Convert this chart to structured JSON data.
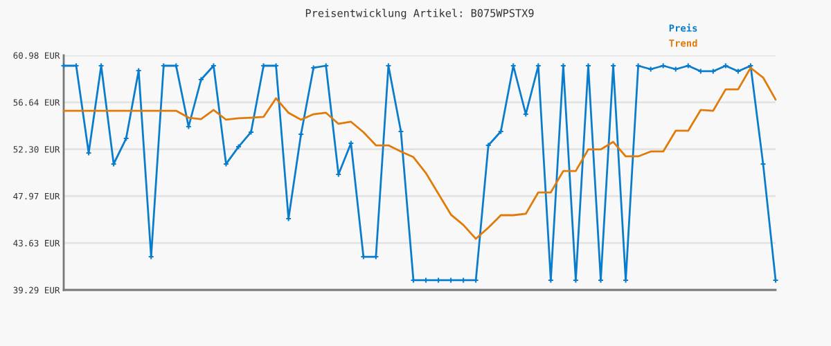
{
  "chart_data": {
    "type": "line",
    "title": "Preisentwicklung Artikel: B075WPSTX9",
    "categories": [
      null,
      null,
      null,
      null,
      null,
      null,
      null,
      null,
      null,
      null,
      null,
      null,
      null,
      null,
      null,
      null,
      null,
      null,
      null,
      null,
      null,
      null,
      null,
      null,
      null,
      null,
      null,
      null,
      null,
      null,
      null,
      null,
      null,
      null,
      null,
      null,
      null,
      null,
      null,
      null,
      null,
      null,
      null,
      null,
      null,
      null,
      null,
      null,
      null,
      null,
      null,
      null,
      null,
      null,
      null,
      null,
      null,
      null
    ],
    "series": [
      {
        "name": "Preis",
        "color": "#0a7ccc",
        "marker": "cross",
        "values": [
          60.02,
          60.02,
          51.96,
          60.02,
          50.94,
          53.3,
          59.57,
          42.36,
          60.02,
          60.02,
          54.39,
          58.74,
          60.02,
          50.94,
          52.53,
          53.88,
          60.02,
          60.02,
          45.88,
          53.69,
          59.83,
          60.02,
          49.98,
          52.85,
          42.36,
          42.36,
          60.02,
          53.94,
          40.19,
          40.19,
          40.19,
          40.19,
          40.19,
          40.19,
          52.66,
          53.94,
          60.02,
          55.54,
          60.02,
          40.19,
          60.02,
          40.19,
          60.02,
          40.19,
          60.02,
          40.19,
          60.02,
          59.7,
          60.02,
          59.7,
          60.02,
          59.51,
          59.51,
          60.02,
          59.51,
          60.02,
          50.94,
          40.19
        ]
      },
      {
        "name": "Trend",
        "color": "#e07b0a",
        "marker": "none",
        "values": [
          55.86,
          55.86,
          55.86,
          55.86,
          55.86,
          55.86,
          55.86,
          55.86,
          55.86,
          55.86,
          55.22,
          55.09,
          55.93,
          55.03,
          55.16,
          55.22,
          55.29,
          57.01,
          55.67,
          55.03,
          55.54,
          55.67,
          54.65,
          54.84,
          53.88,
          52.66,
          52.66,
          52.09,
          51.57,
          50.1,
          48.18,
          46.26,
          45.3,
          44.02,
          45.05,
          46.2,
          46.2,
          46.33,
          48.31,
          48.31,
          50.29,
          50.29,
          52.28,
          52.28,
          52.98,
          51.64,
          51.64,
          52.09,
          52.09,
          54.01,
          54.01,
          55.93,
          55.86,
          57.84,
          57.84,
          59.83,
          58.93,
          56.89
        ]
      }
    ],
    "ylim": [
      39.29,
      60.98
    ],
    "yticks": [
      {
        "value": 39.29,
        "label": "39.29 EUR"
      },
      {
        "value": 43.63,
        "label": "43.63 EUR"
      },
      {
        "value": 47.97,
        "label": "47.97 EUR"
      },
      {
        "value": 52.3,
        "label": "52.30 EUR"
      },
      {
        "value": 56.64,
        "label": "56.64 EUR"
      },
      {
        "value": 60.98,
        "label": "60.98 EUR"
      }
    ],
    "grid": "y",
    "legend": "top right",
    "line_style": "solid"
  }
}
